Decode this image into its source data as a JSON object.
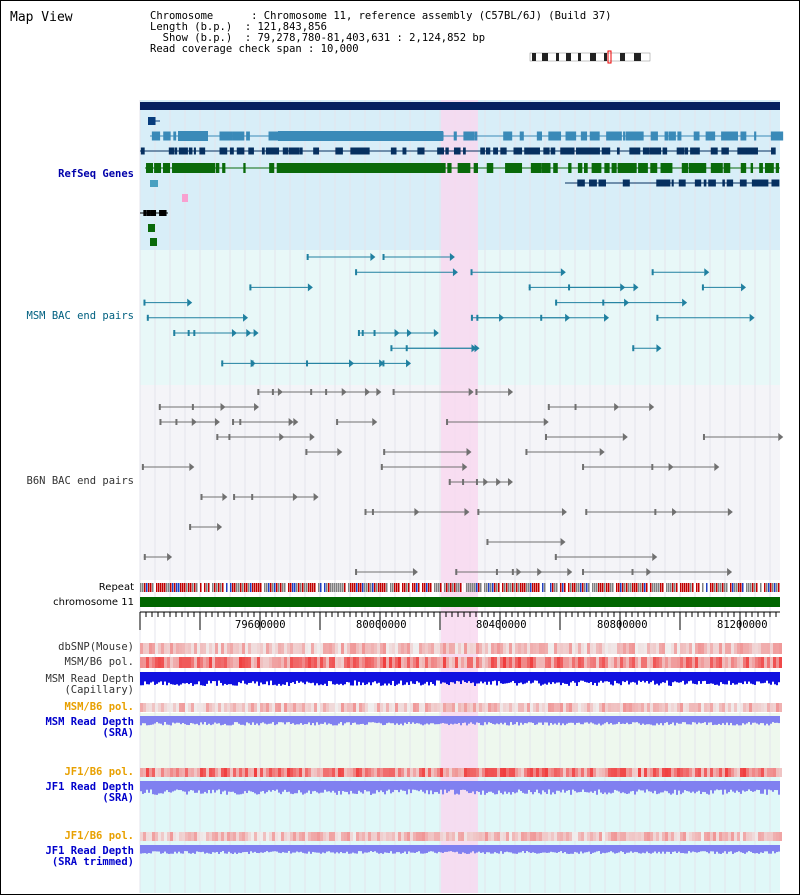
{
  "view": {
    "title": "Map View",
    "info_lines": [
      "Chromosome      : Chromosome 11, reference assembly (C57BL/6J) (Build 37)",
      "Length (b.p.)  : 121,843,856",
      "  Show (b.p.)  : 79,278,780-81,403,631 : 2,124,852 bp",
      "Read coverage check span : 10,000"
    ]
  },
  "tracks": {
    "refseq": "RefSeq Genes",
    "msm_bac": "MSM BAC end pairs",
    "b6n_bac": "B6N BAC end pairs",
    "repeat": "Repeat",
    "chromosome": "chromosome 11",
    "dbsnp": "dbSNP(Mouse)",
    "msm_b6_pol_1": "MSM/B6 pol.",
    "msm_depth_cap": [
      "MSM Read Depth",
      "(Capillary)"
    ],
    "msm_b6_pol_2": "MSM/B6 pol.",
    "msm_depth_sra": [
      "MSM Read Depth",
      "(SRA)"
    ],
    "jf1_b6_pol_1": "JF1/B6 pol.",
    "jf1_depth_sra": [
      "JF1 Read Depth",
      "(SRA)"
    ],
    "jf1_b6_pol_2": "JF1/B6 pol.",
    "jf1_depth_trim": [
      "JF1 Read Depth",
      "(SRA trimmed)"
    ]
  },
  "axis": {
    "ticks": [
      "79600000",
      "80000000",
      "80400000",
      "80800000",
      "81200000"
    ]
  },
  "colors": {
    "refseq_bg": "#d8eef8",
    "msm_bg": "#e8f8f8",
    "b6n_bg": "#f4f4f8",
    "highlight": "#f8d8f0",
    "chromosome": "#006600",
    "msm_track": "#2080a0",
    "b6n_track": "#707070",
    "depth_cap": "#1010e0",
    "depth_sra": "#8080f0"
  }
}
